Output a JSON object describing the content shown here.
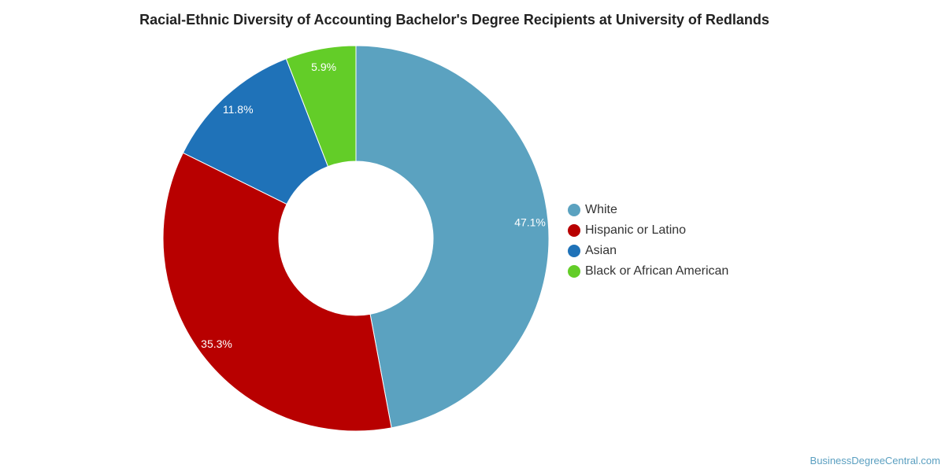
{
  "chart_data": {
    "type": "pie",
    "title": "Racial-Ethnic Diversity of Accounting Bachelor's Degree Recipients at University of Redlands",
    "categories": [
      "White",
      "Hispanic or Latino",
      "Asian",
      "Black or African American"
    ],
    "values": [
      47.1,
      35.3,
      11.8,
      5.9
    ],
    "labels": [
      "47.1%",
      "35.3%",
      "11.8%",
      "5.9%"
    ],
    "colors": [
      "#5ba2c0",
      "#b80000",
      "#1f72b8",
      "#63cd28"
    ],
    "donut": true,
    "legend_position": "right"
  },
  "source": "BusinessDegreeCentral.com"
}
